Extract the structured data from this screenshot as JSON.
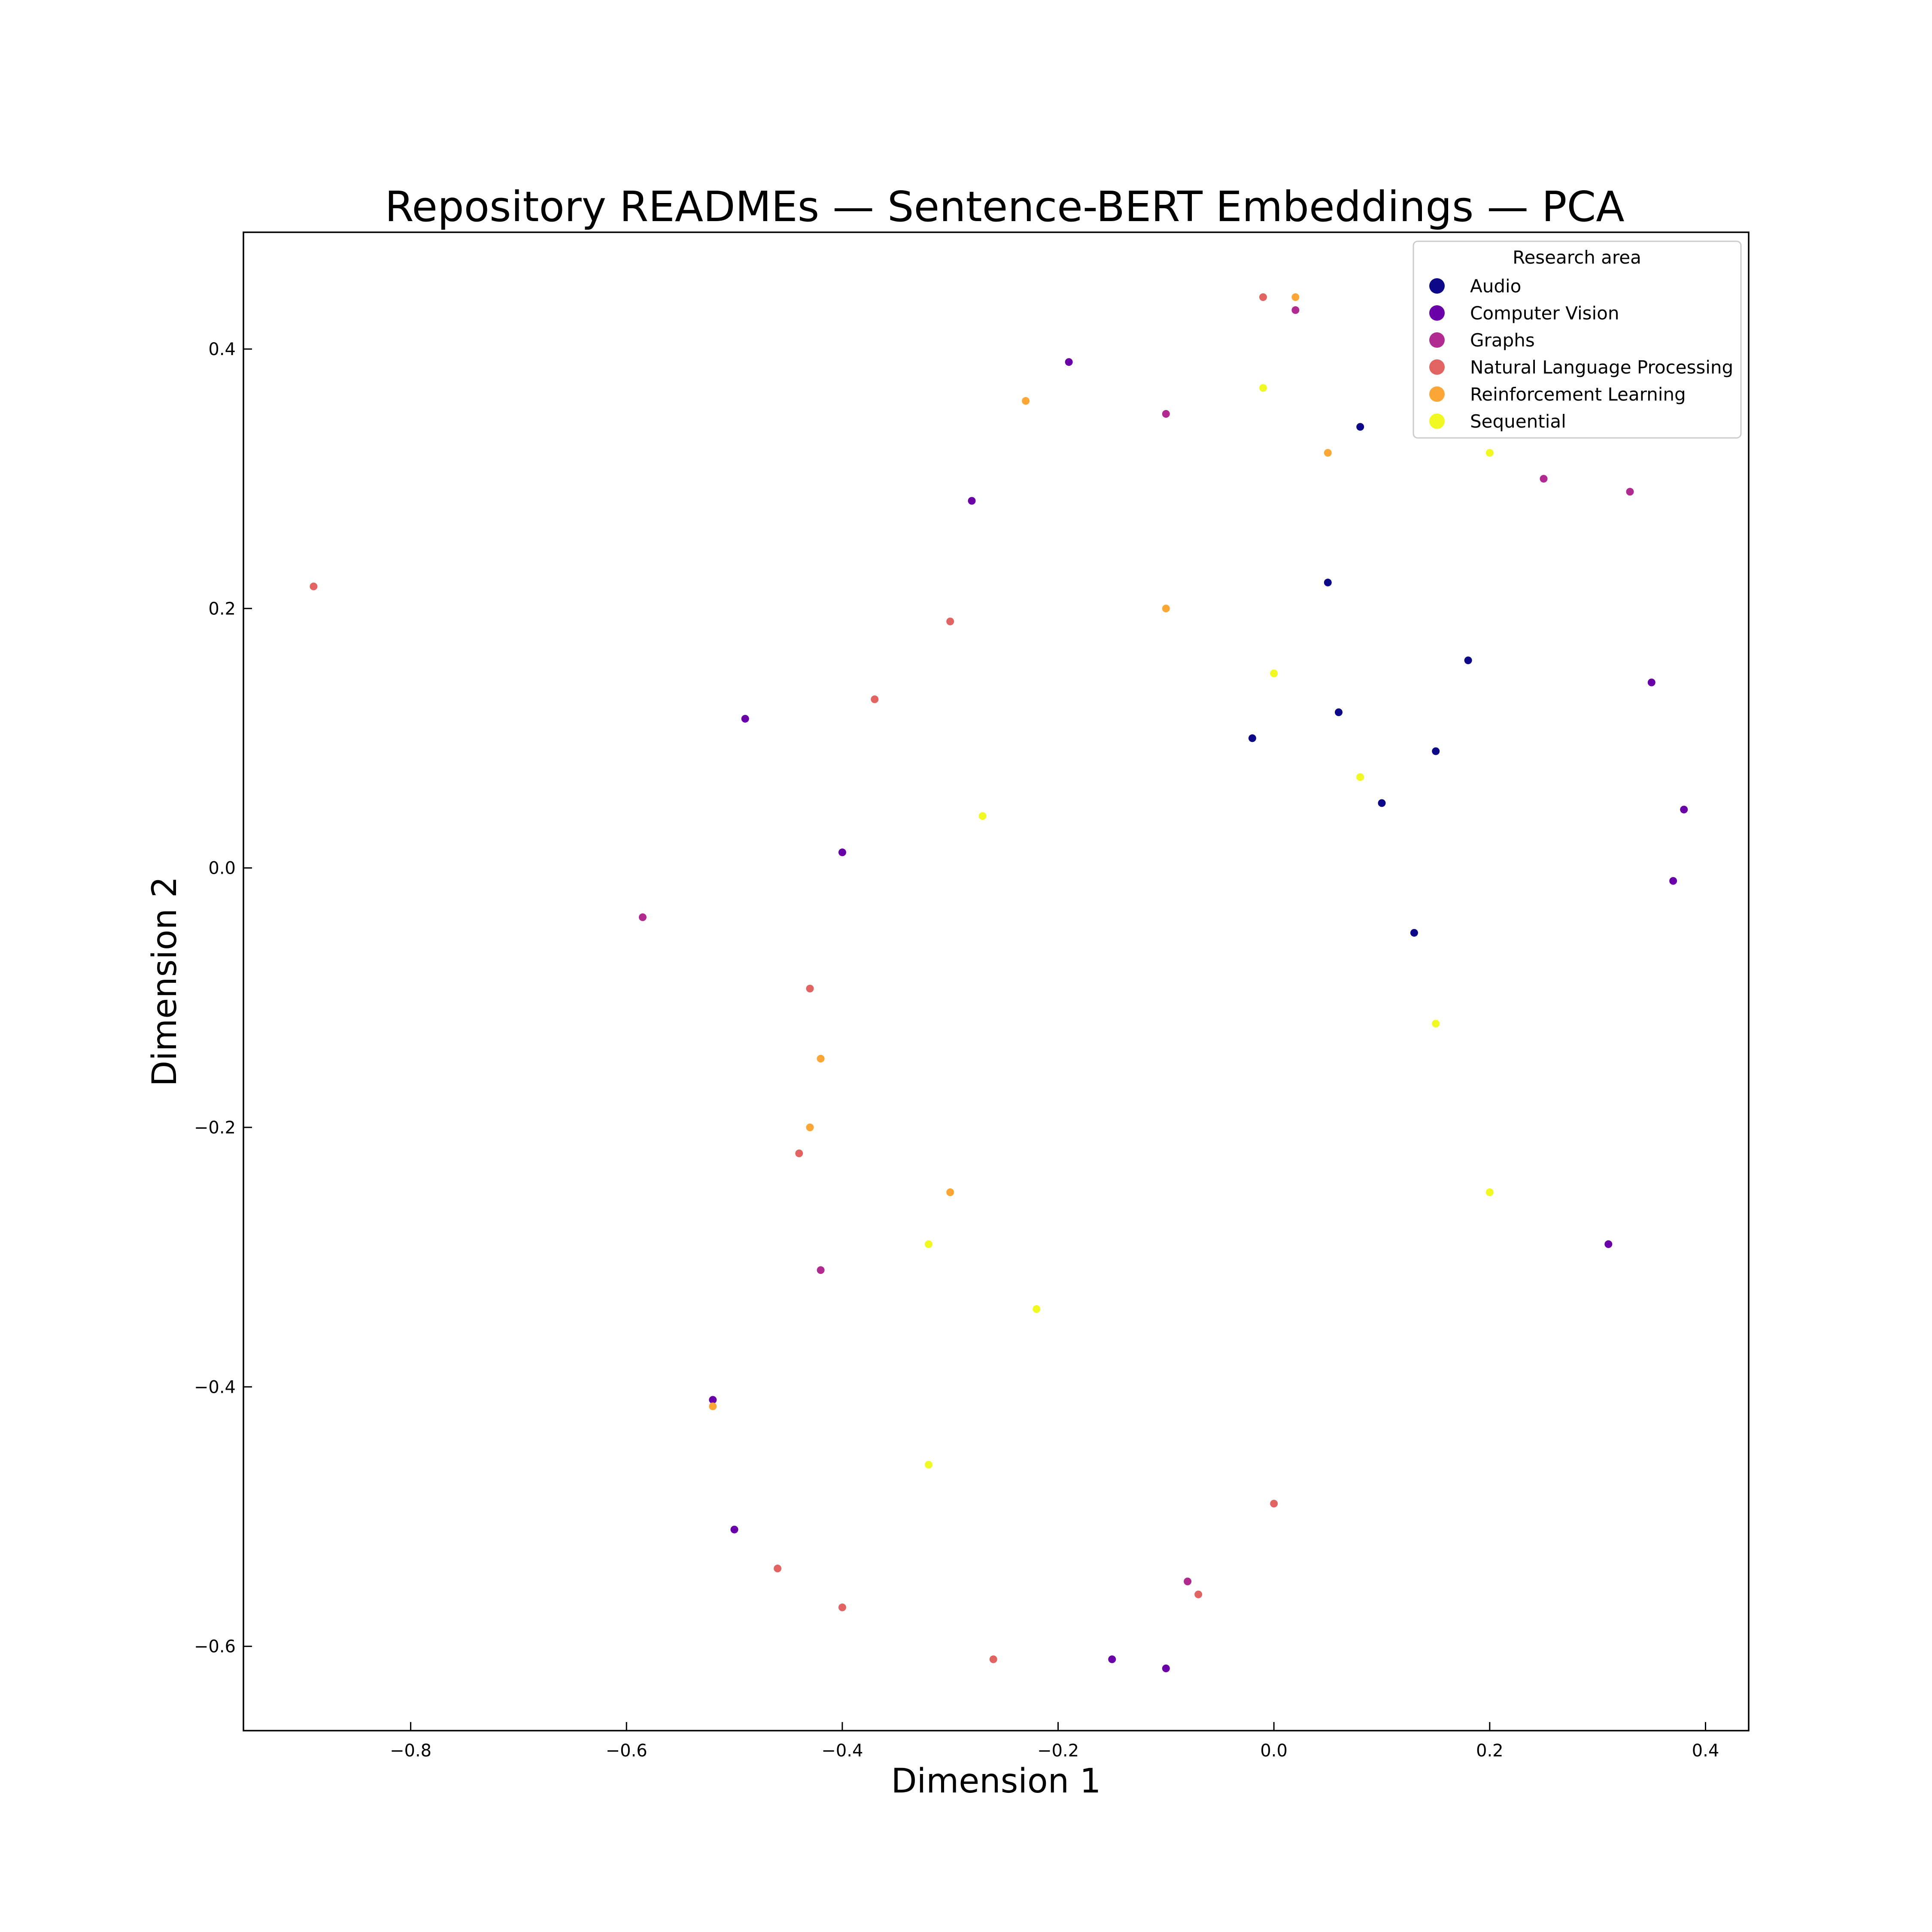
{
  "chart_data": {
    "type": "scatter",
    "title": "Repository READMEs — Sentence-BERT Embeddings — PCA",
    "xlabel": "Dimension 1",
    "ylabel": "Dimension 2",
    "xlim": [
      -0.955,
      0.44
    ],
    "ylim": [
      -0.665,
      0.49
    ],
    "x_ticks": [
      -0.8,
      -0.6,
      -0.4,
      -0.2,
      0.0,
      0.2,
      0.4
    ],
    "y_ticks": [
      -0.6,
      -0.4,
      -0.2,
      0.0,
      0.2,
      0.4
    ],
    "x_tick_labels": [
      "−0.8",
      "−0.6",
      "−0.4",
      "−0.2",
      "0.0",
      "0.2",
      "0.4"
    ],
    "y_tick_labels": [
      "−0.6",
      "−0.4",
      "−0.2",
      "0.0",
      "0.2",
      "0.4"
    ],
    "grid": false,
    "legend": {
      "title": "Research area",
      "placement": "top-right"
    },
    "series": [
      {
        "name": "Audio",
        "color": "#0d0887",
        "points": [
          [
            0.08,
            0.34
          ],
          [
            0.15,
            0.09
          ],
          [
            0.06,
            0.12
          ],
          [
            0.1,
            0.05
          ],
          [
            -0.02,
            0.1
          ],
          [
            0.13,
            -0.05
          ],
          [
            0.18,
            0.16
          ],
          [
            0.05,
            0.22
          ]
        ]
      },
      {
        "name": "Computer Vision",
        "color": "#6a00a8",
        "points": [
          [
            -0.49,
            0.115
          ],
          [
            -0.4,
            0.012
          ],
          [
            0.38,
            0.045
          ],
          [
            0.37,
            -0.01
          ],
          [
            -0.5,
            -0.51
          ],
          [
            -0.52,
            -0.41
          ],
          [
            -0.1,
            -0.617
          ],
          [
            -0.15,
            -0.61
          ],
          [
            -0.28,
            0.283
          ],
          [
            -0.19,
            0.39
          ],
          [
            0.35,
            0.143
          ],
          [
            0.31,
            -0.29
          ]
        ]
      },
      {
        "name": "Graphs",
        "color": "#b12a90",
        "points": [
          [
            -0.585,
            -0.038
          ],
          [
            0.33,
            0.29
          ],
          [
            0.02,
            0.43
          ],
          [
            -0.1,
            0.35
          ],
          [
            0.25,
            0.3
          ],
          [
            -0.42,
            -0.31
          ],
          [
            -0.08,
            -0.55
          ]
        ]
      },
      {
        "name": "Natural Language Processing",
        "color": "#e16462",
        "points": [
          [
            -0.89,
            0.217
          ],
          [
            -0.43,
            -0.093
          ],
          [
            -0.26,
            -0.61
          ],
          [
            -0.4,
            -0.57
          ],
          [
            -0.01,
            0.44
          ],
          [
            -0.3,
            0.19
          ],
          [
            -0.44,
            -0.22
          ],
          [
            -0.46,
            -0.54
          ],
          [
            -0.37,
            0.13
          ],
          [
            -0.07,
            -0.56
          ],
          [
            0.0,
            -0.49
          ]
        ]
      },
      {
        "name": "Reinforcement Learning",
        "color": "#fca636",
        "points": [
          [
            -0.52,
            -0.415
          ],
          [
            -0.42,
            -0.147
          ],
          [
            -0.23,
            0.36
          ],
          [
            0.02,
            0.44
          ],
          [
            -0.43,
            -0.2
          ],
          [
            -0.3,
            -0.25
          ],
          [
            0.05,
            0.32
          ],
          [
            -0.1,
            0.2
          ]
        ]
      },
      {
        "name": "Sequential",
        "color": "#f0f921",
        "points": [
          [
            -0.01,
            0.37
          ],
          [
            -0.32,
            -0.29
          ],
          [
            0.2,
            0.32
          ],
          [
            -0.32,
            -0.46
          ],
          [
            0.2,
            -0.25
          ],
          [
            -0.22,
            -0.34
          ],
          [
            0.0,
            0.15
          ],
          [
            0.08,
            0.07
          ],
          [
            -0.27,
            0.04
          ],
          [
            0.15,
            -0.12
          ]
        ]
      }
    ]
  }
}
